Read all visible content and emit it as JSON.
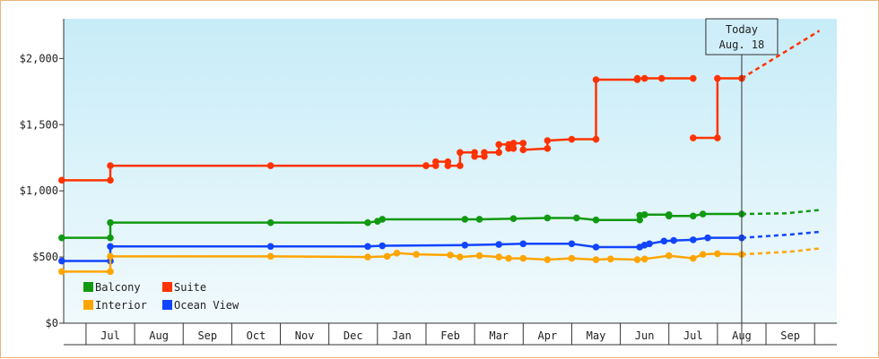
{
  "chart_data": {
    "type": "line",
    "y_axis": {
      "min": 0,
      "max": 2300,
      "ticks": [
        0,
        500,
        1000,
        1500,
        2000
      ],
      "tick_labels": [
        "$0",
        "$500",
        "$1,000",
        "$1,500",
        "$2,000"
      ]
    },
    "months": [
      "Jul",
      "Aug",
      "Sep",
      "Oct",
      "Nov",
      "Dec",
      "Jan",
      "Feb",
      "Mar",
      "Apr",
      "May",
      "Jun",
      "Jul",
      "Aug",
      "Sep"
    ],
    "today": {
      "label_line1": "Today",
      "label_line2": "Aug. 18",
      "month_index": 13
    },
    "x_unit": "month index (0 = Jul, 1 = Aug, ... 14 = Sep)",
    "grid": false,
    "background": "gradient light blue",
    "legend": {
      "placement": "bottom-left",
      "order": [
        "Balcony",
        "Suite",
        "Interior",
        "Ocean View"
      ]
    },
    "series": [
      {
        "name": "Suite",
        "color": "#ff3300",
        "values": [
          [
            -1.0,
            1080
          ],
          [
            0.0,
            1080
          ],
          [
            0.0,
            1190
          ],
          [
            3.3,
            1190
          ],
          [
            6.5,
            1190
          ],
          [
            6.5,
            1190
          ],
          [
            6.7,
            1190
          ],
          [
            6.7,
            1220
          ],
          [
            6.95,
            1220
          ],
          [
            6.95,
            1190
          ],
          [
            7.2,
            1190
          ],
          [
            7.2,
            1290
          ],
          [
            7.5,
            1290
          ],
          [
            7.5,
            1260
          ],
          [
            7.7,
            1260
          ],
          [
            7.7,
            1290
          ],
          [
            8.0,
            1290
          ],
          [
            8.0,
            1350
          ],
          [
            8.2,
            1350
          ],
          [
            8.2,
            1320
          ],
          [
            8.3,
            1320
          ],
          [
            8.3,
            1360
          ],
          [
            8.5,
            1360
          ],
          [
            8.5,
            1310
          ],
          [
            9.0,
            1320
          ],
          [
            9.0,
            1380
          ],
          [
            9.5,
            1390
          ],
          [
            10.0,
            1390
          ],
          [
            10.0,
            1840
          ],
          [
            10.85,
            1840
          ],
          [
            10.85,
            1850
          ],
          [
            11.0,
            1850
          ],
          [
            11.35,
            1850
          ],
          [
            12.0,
            1850
          ],
          [
            12.0,
            1400
          ],
          [
            12.5,
            1400
          ],
          [
            12.5,
            1850
          ],
          [
            13.0,
            1850
          ]
        ],
        "breaks_after": [
          33
        ],
        "forecast": [
          [
            13.0,
            1850
          ],
          [
            14.6,
            2210
          ]
        ]
      },
      {
        "name": "Balcony",
        "color": "#119911",
        "values": [
          [
            -1.0,
            645
          ],
          [
            0.0,
            645
          ],
          [
            0.0,
            760
          ],
          [
            3.3,
            760
          ],
          [
            5.3,
            760
          ],
          [
            5.5,
            770
          ],
          [
            5.6,
            785
          ],
          [
            7.3,
            785
          ],
          [
            7.6,
            785
          ],
          [
            8.3,
            790
          ],
          [
            9.0,
            795
          ],
          [
            9.6,
            795
          ],
          [
            10.0,
            780
          ],
          [
            10.9,
            780
          ],
          [
            10.9,
            815
          ],
          [
            11.0,
            820
          ],
          [
            11.5,
            820
          ],
          [
            11.5,
            810
          ],
          [
            12.0,
            810
          ],
          [
            12.2,
            825
          ],
          [
            13.0,
            825
          ]
        ],
        "breaks_after": [],
        "forecast": [
          [
            13.0,
            825
          ],
          [
            13.9,
            830
          ],
          [
            14.6,
            855
          ]
        ]
      },
      {
        "name": "Ocean View",
        "color": "#1144ff",
        "values": [
          [
            -1.0,
            470
          ],
          [
            0.0,
            470
          ],
          [
            0.0,
            580
          ],
          [
            3.3,
            580
          ],
          [
            5.3,
            580
          ],
          [
            5.6,
            585
          ],
          [
            7.3,
            590
          ],
          [
            8.0,
            595
          ],
          [
            8.5,
            600
          ],
          [
            9.5,
            600
          ],
          [
            10.0,
            575
          ],
          [
            10.9,
            575
          ],
          [
            11.0,
            590
          ],
          [
            11.1,
            600
          ],
          [
            11.4,
            620
          ],
          [
            11.6,
            625
          ],
          [
            12.0,
            630
          ],
          [
            12.3,
            645
          ],
          [
            13.0,
            645
          ]
        ],
        "breaks_after": [],
        "forecast": [
          [
            13.0,
            645
          ],
          [
            14.0,
            670
          ],
          [
            14.6,
            690
          ]
        ]
      },
      {
        "name": "Interior",
        "color": "#ffa500",
        "values": [
          [
            -1.0,
            390
          ],
          [
            0.0,
            390
          ],
          [
            0.0,
            505
          ],
          [
            3.3,
            505
          ],
          [
            5.3,
            500
          ],
          [
            5.7,
            505
          ],
          [
            5.9,
            530
          ],
          [
            6.3,
            520
          ],
          [
            7.0,
            515
          ],
          [
            7.2,
            500
          ],
          [
            7.6,
            510
          ],
          [
            8.0,
            500
          ],
          [
            8.2,
            490
          ],
          [
            8.5,
            490
          ],
          [
            9.0,
            480
          ],
          [
            9.5,
            490
          ],
          [
            10.0,
            480
          ],
          [
            10.3,
            485
          ],
          [
            10.85,
            480
          ],
          [
            11.0,
            485
          ],
          [
            11.5,
            510
          ],
          [
            12.0,
            490
          ],
          [
            12.2,
            520
          ],
          [
            12.5,
            525
          ],
          [
            13.0,
            520
          ]
        ],
        "breaks_after": [],
        "forecast": [
          [
            13.0,
            520
          ],
          [
            14.0,
            540
          ],
          [
            14.6,
            565
          ]
        ]
      }
    ]
  }
}
